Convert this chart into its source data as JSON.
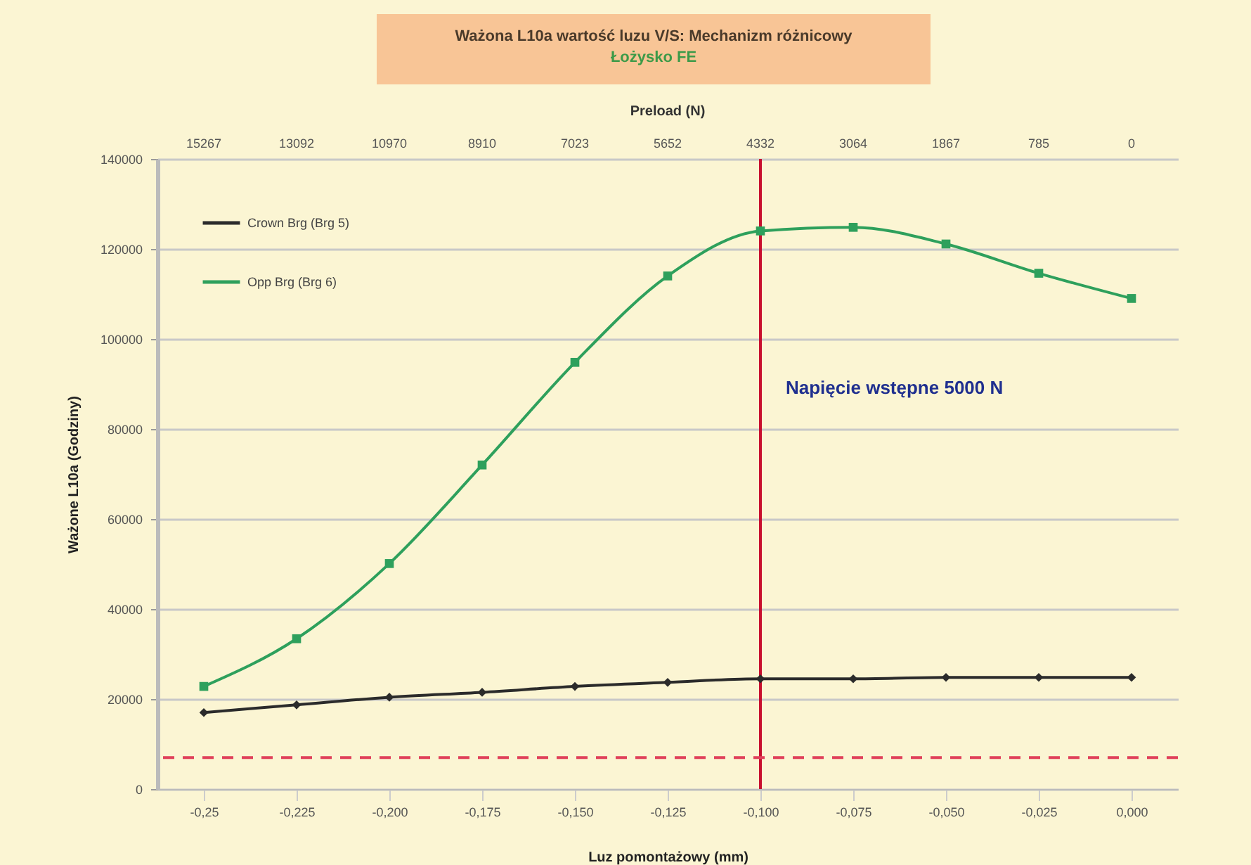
{
  "chart_data": {
    "type": "line",
    "title": "Ważona L10a wartość luzu V/S: Mechanizm różnicowy",
    "subtitle": "Łożysko FE",
    "xlabel": "Luz pomontażowy (mm)",
    "x2label": "Preload (N)",
    "ylabel": "Ważone L10a (Godziny)",
    "x": [
      -0.25,
      -0.225,
      -0.2,
      -0.175,
      -0.15,
      -0.125,
      -0.1,
      -0.075,
      -0.05,
      -0.025,
      0
    ],
    "xlim": [
      -0.2625,
      0.0125
    ],
    "xticks": [
      {
        "value": -0.25,
        "label": "-0,25"
      },
      {
        "value": -0.225,
        "label": "-0,225"
      },
      {
        "value": -0.2,
        "label": "-0,200"
      },
      {
        "value": -0.175,
        "label": "-0,175"
      },
      {
        "value": -0.15,
        "label": "-0,150"
      },
      {
        "value": -0.125,
        "label": "-0,125"
      },
      {
        "value": -0.1,
        "label": "-0,100"
      },
      {
        "value": -0.075,
        "label": "-0,075"
      },
      {
        "value": -0.05,
        "label": "-0,050"
      },
      {
        "value": -0.025,
        "label": "-0,025"
      },
      {
        "value": 0,
        "label": "0,000"
      }
    ],
    "annotations": [
      "15267",
      "13092",
      "10970",
      "8910",
      "7023",
      "5652",
      "4332",
      "3064",
      "1867",
      "785",
      "0"
    ],
    "ylim": [
      0,
      140000
    ],
    "yticks": [
      0,
      20000,
      40000,
      60000,
      80000,
      100000,
      120000,
      140000
    ],
    "grid": "y",
    "legend": "top left",
    "series": [
      {
        "name": "Crown Brg (Brg 5)",
        "color": "#2b2b2b",
        "marker": "diamond",
        "values": [
          17000,
          18700,
          20400,
          21500,
          22800,
          23700,
          24500,
          24500,
          24800,
          24800,
          24800
        ]
      },
      {
        "name": "Opp Brg (Brg 6)",
        "color": "#2ea05c",
        "marker": "square",
        "values": [
          22800,
          33400,
          50100,
          72000,
          94800,
          114000,
          124000,
          124800,
          121100,
          114600,
          109000
        ]
      }
    ],
    "ref_lines": [
      {
        "axis": "x",
        "value": -0.1,
        "label": "Napięcie wstępne 5000 N",
        "color": "#c8102e"
      },
      {
        "axis": "y",
        "value": 7000,
        "color": "#e0405a",
        "line_style": "dashed"
      }
    ]
  }
}
